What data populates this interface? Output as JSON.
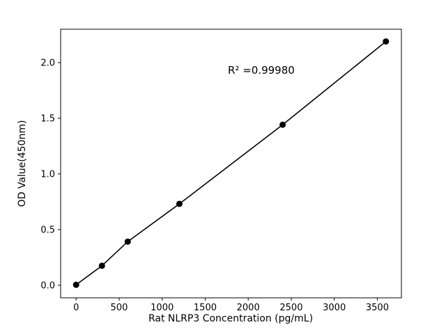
{
  "chart_data": {
    "type": "scatter",
    "title": "",
    "xlabel": "Rat NLRP3 Concentration (pg/mL)",
    "ylabel": "OD Value(450nm)",
    "annotation": "R² =0.99980",
    "x": [
      0,
      300,
      600,
      1200,
      2400,
      3600
    ],
    "y": [
      0.004,
      0.175,
      0.392,
      0.731,
      1.442,
      2.19
    ],
    "xlim": [
      -180,
      3780
    ],
    "ylim": [
      -0.113,
      2.3
    ],
    "xticks": [
      0,
      500,
      1000,
      1500,
      2000,
      2500,
      3000,
      3500
    ],
    "xtick_labels": [
      "0",
      "500",
      "1000",
      "1500",
      "2000",
      "2500",
      "3000",
      "3500"
    ],
    "yticks": [
      0.0,
      0.5,
      1.0,
      1.5,
      2.0
    ],
    "ytick_labels": [
      "0.0",
      "0.5",
      "1.0",
      "1.5",
      "2.0"
    ],
    "line_color": "#000000",
    "marker_color": "#000000",
    "background_color": "#ffffff",
    "grid": false
  }
}
